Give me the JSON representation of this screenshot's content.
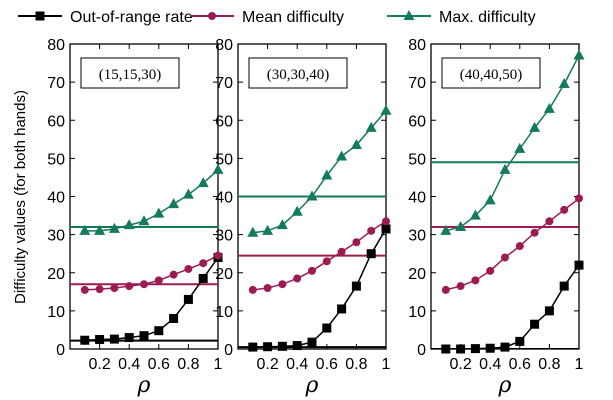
{
  "chart_data": {
    "type": "line",
    "ylabel": "Difficulty values (for both hands)",
    "xlabel": "ρ",
    "ylim": [
      0,
      80
    ],
    "xlim": [
      0,
      1
    ],
    "yticks": [
      0,
      10,
      20,
      30,
      40,
      50,
      60,
      70,
      80
    ],
    "xticks": [
      0.2,
      0.4,
      0.6,
      0.8,
      1
    ],
    "xtick_labels": [
      "0.2",
      "0.4",
      "0.6",
      "0.8",
      "1"
    ],
    "legend": [
      "Out-of-range rate",
      "Mean difficulty",
      "Max. difficulty"
    ],
    "legend_position": "top",
    "grid": false,
    "colors": {
      "out_of_range": "#000000",
      "mean": "#9b1b52",
      "max": "#137a5c"
    },
    "x": [
      0.1,
      0.2,
      0.3,
      0.4,
      0.5,
      0.6,
      0.7,
      0.8,
      0.9,
      1.0
    ],
    "panels": [
      {
        "annotation": "(15,15,30)",
        "series": [
          {
            "name": "Out-of-range rate",
            "marker": "square",
            "values": [
              2.3,
              2.5,
              2.6,
              3.0,
              3.5,
              4.8,
              8.0,
              13.0,
              18.5,
              24.0
            ]
          },
          {
            "name": "Mean difficulty",
            "marker": "circle",
            "values": [
              15.5,
              15.7,
              16.0,
              16.5,
              17.0,
              18.0,
              19.5,
              21.0,
              22.5,
              24.5
            ]
          },
          {
            "name": "Max. difficulty",
            "marker": "triangle",
            "values": [
              31.0,
              31.0,
              31.5,
              32.5,
              33.5,
              35.5,
              38.0,
              40.5,
              43.5,
              47.0
            ]
          }
        ],
        "hlines": [
          {
            "series": "Out-of-range rate",
            "value": 2.2
          },
          {
            "series": "Mean difficulty",
            "value": 17.0
          },
          {
            "series": "Max. difficulty",
            "value": 32.0
          }
        ]
      },
      {
        "annotation": "(30,30,40)",
        "series": [
          {
            "name": "Out-of-range rate",
            "marker": "square",
            "values": [
              0.5,
              0.6,
              0.7,
              0.9,
              1.8,
              5.5,
              10.5,
              16.5,
              25.0,
              31.5
            ]
          },
          {
            "name": "Mean difficulty",
            "marker": "circle",
            "values": [
              15.5,
              16.0,
              17.0,
              18.5,
              20.5,
              23.0,
              25.5,
              28.0,
              31.0,
              33.5
            ]
          },
          {
            "name": "Max. difficulty",
            "marker": "triangle",
            "values": [
              30.5,
              31.0,
              32.5,
              36.0,
              40.0,
              45.5,
              50.5,
              53.5,
              58.0,
              62.5
            ]
          }
        ],
        "hlines": [
          {
            "series": "Out-of-range rate",
            "value": 0.5
          },
          {
            "series": "Mean difficulty",
            "value": 24.5
          },
          {
            "series": "Max. difficulty",
            "value": 40.0
          }
        ]
      },
      {
        "annotation": "(40,40,50)",
        "series": [
          {
            "name": "Out-of-range rate",
            "marker": "square",
            "values": [
              0.0,
              0.0,
              0.1,
              0.2,
              0.5,
              2.0,
              6.5,
              10.0,
              16.5,
              22.0
            ]
          },
          {
            "name": "Mean difficulty",
            "marker": "circle",
            "values": [
              15.5,
              16.5,
              18.0,
              20.5,
              24.0,
              27.0,
              30.5,
              33.5,
              36.5,
              39.5
            ]
          },
          {
            "name": "Max. difficulty",
            "marker": "triangle",
            "values": [
              31.0,
              32.0,
              35.0,
              39.0,
              47.0,
              52.5,
              58.0,
              63.0,
              69.5,
              77.0
            ]
          }
        ],
        "hlines": [
          {
            "series": "Out-of-range rate",
            "value": 0.0
          },
          {
            "series": "Mean difficulty",
            "value": 32.0
          },
          {
            "series": "Max. difficulty",
            "value": 49.0
          }
        ]
      }
    ]
  }
}
